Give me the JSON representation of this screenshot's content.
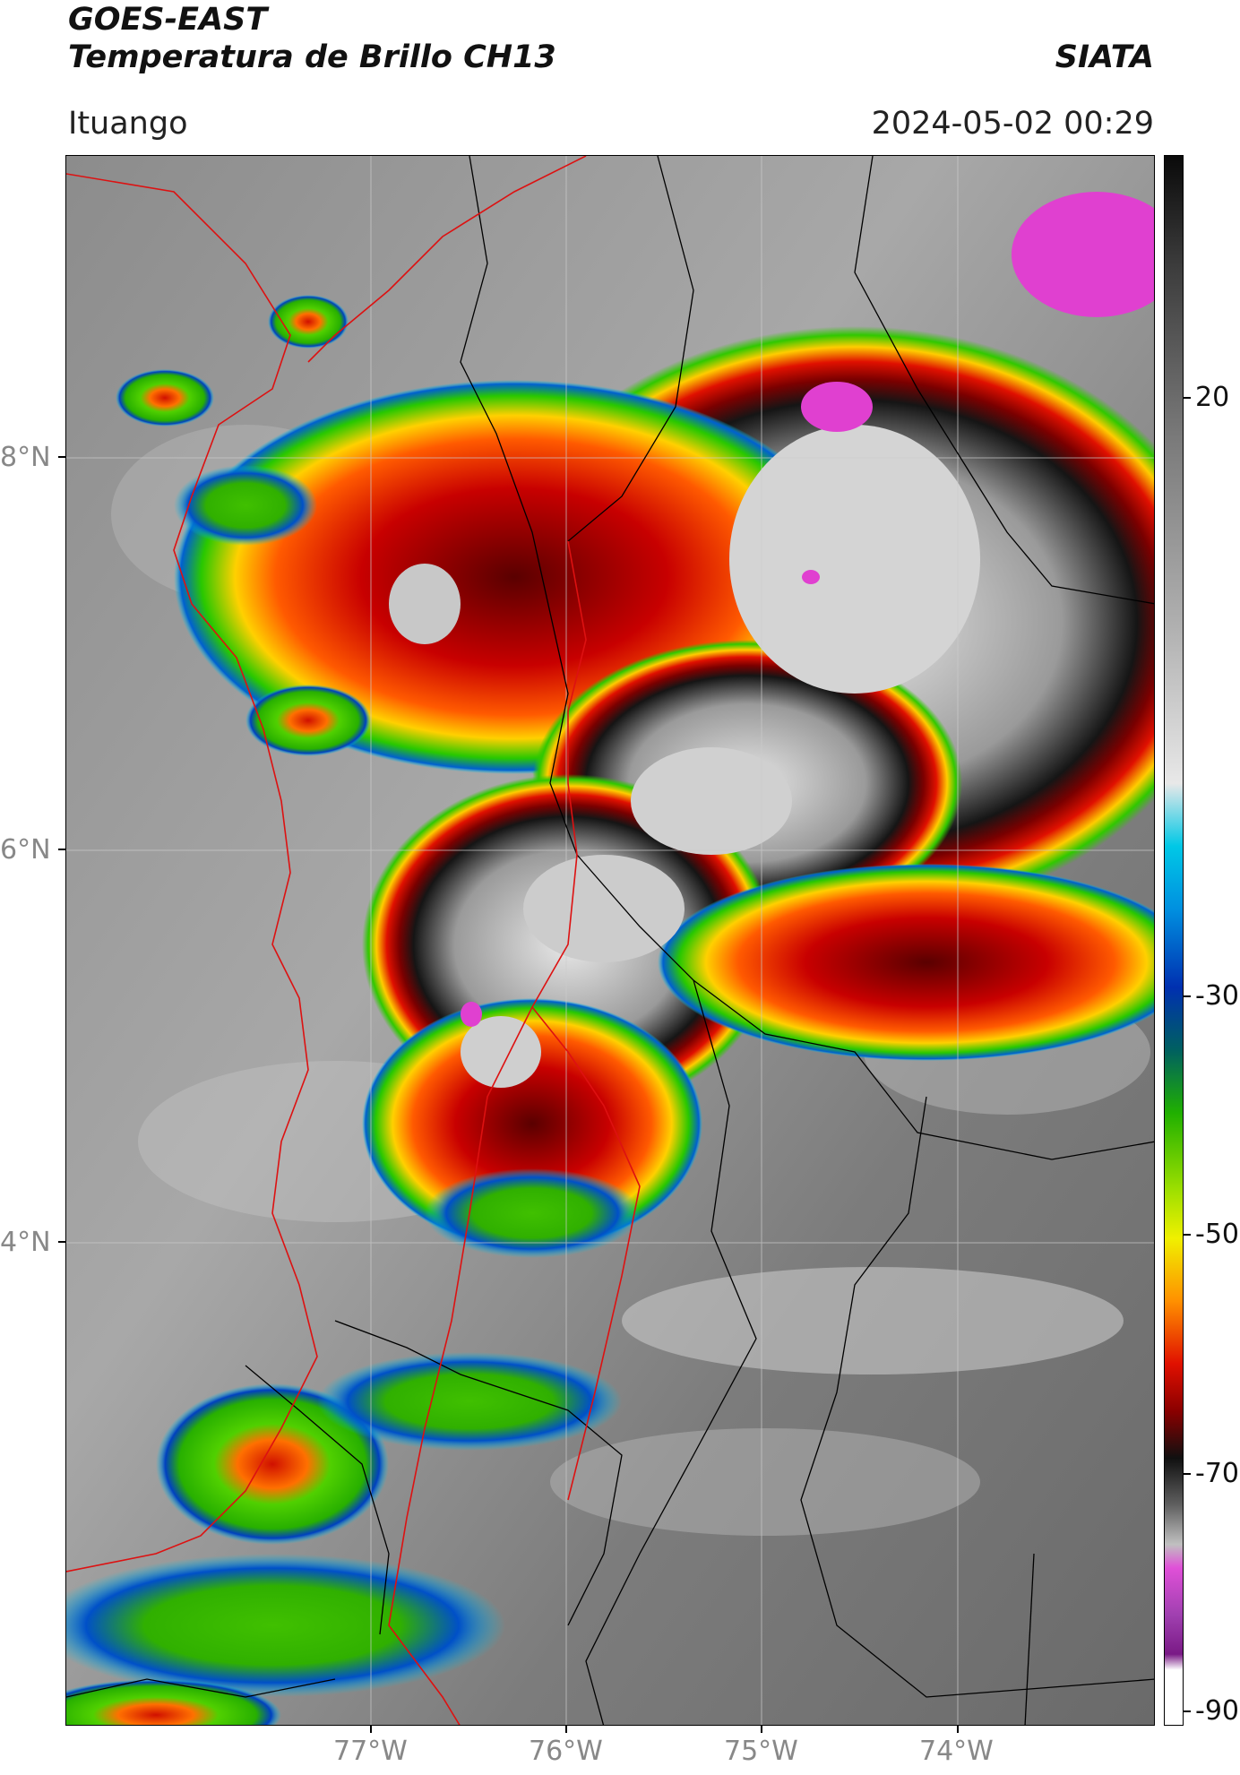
{
  "header": {
    "satellite": "GOES-EAST",
    "product": "Temperatura de Brillo CH13",
    "organization": "SIATA",
    "location": "Ituango",
    "datetime": "2024-05-02 00:29"
  },
  "map": {
    "lat_labels": [
      "8°N",
      "6°N",
      "4°N"
    ],
    "lon_labels": [
      "77°W",
      "76°W",
      "75°W",
      "74°W"
    ]
  },
  "colorbar": {
    "tick_labels": [
      "20",
      "-30",
      "-50",
      "-70",
      "-90"
    ],
    "colors": {
      "warm_gray_light": "#d8d8d8",
      "warm_gray_dark": "#606060",
      "cyan": "#00c8e6",
      "blue": "#003cc8",
      "green": "#28c800",
      "yellow": "#f0f000",
      "orange": "#ff6a00",
      "red": "#dc0000",
      "dark_red": "#6e0000",
      "black": "#0a0a0a",
      "magenta": "#e040d0",
      "purple": "#8c1e96"
    }
  }
}
